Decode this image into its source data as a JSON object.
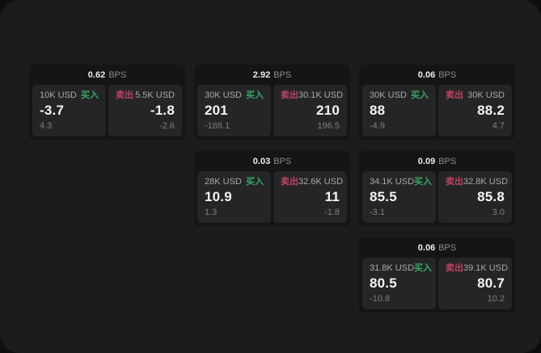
{
  "labels": {
    "bps_unit": "BPS",
    "buy": "买入",
    "sell": "卖出"
  },
  "colors": {
    "buy_accent": "#35a763",
    "sell_accent": "#bf4360",
    "window_bg": "#1c1c1d",
    "card_bg": "#151516",
    "panel_bg": "#252527"
  },
  "cards": [
    {
      "grid": {
        "col": 1,
        "row": 1
      },
      "bps": "0.62",
      "buy": {
        "notional": "10K USD",
        "price": "-3.7",
        "delta": "4.3"
      },
      "sell": {
        "notional": "5.5K USD",
        "price": "-1.8",
        "delta": "-2.6"
      }
    },
    {
      "grid": {
        "col": 2,
        "row": 1
      },
      "bps": "2.92",
      "buy": {
        "notional": "30K USD",
        "price": "201",
        "delta": "-188.1"
      },
      "sell": {
        "notional": "30.1K USD",
        "price": "210",
        "delta": "196.5"
      }
    },
    {
      "grid": {
        "col": 3,
        "row": 1
      },
      "bps": "0.06",
      "buy": {
        "notional": "30K USD",
        "price": "88",
        "delta": "-4.9"
      },
      "sell": {
        "notional": "30K USD",
        "price": "88.2",
        "delta": "4.7"
      }
    },
    {
      "grid": {
        "col": 2,
        "row": 2
      },
      "bps": "0.03",
      "buy": {
        "notional": "28K USD",
        "price": "10.9",
        "delta": "1.3"
      },
      "sell": {
        "notional": "32.6K USD",
        "price": "11",
        "delta": "-1.8"
      }
    },
    {
      "grid": {
        "col": 3,
        "row": 2
      },
      "bps": "0.09",
      "buy": {
        "notional": "34.1K USD",
        "price": "85.5",
        "delta": "-3.1"
      },
      "sell": {
        "notional": "32.8K USD",
        "price": "85.8",
        "delta": "3.0"
      }
    },
    {
      "grid": {
        "col": 3,
        "row": 3
      },
      "bps": "0.06",
      "buy": {
        "notional": "31.8K USD",
        "price": "80.5",
        "delta": "-10.8"
      },
      "sell": {
        "notional": "39.1K USD",
        "price": "80.7",
        "delta": "10.2"
      }
    }
  ]
}
